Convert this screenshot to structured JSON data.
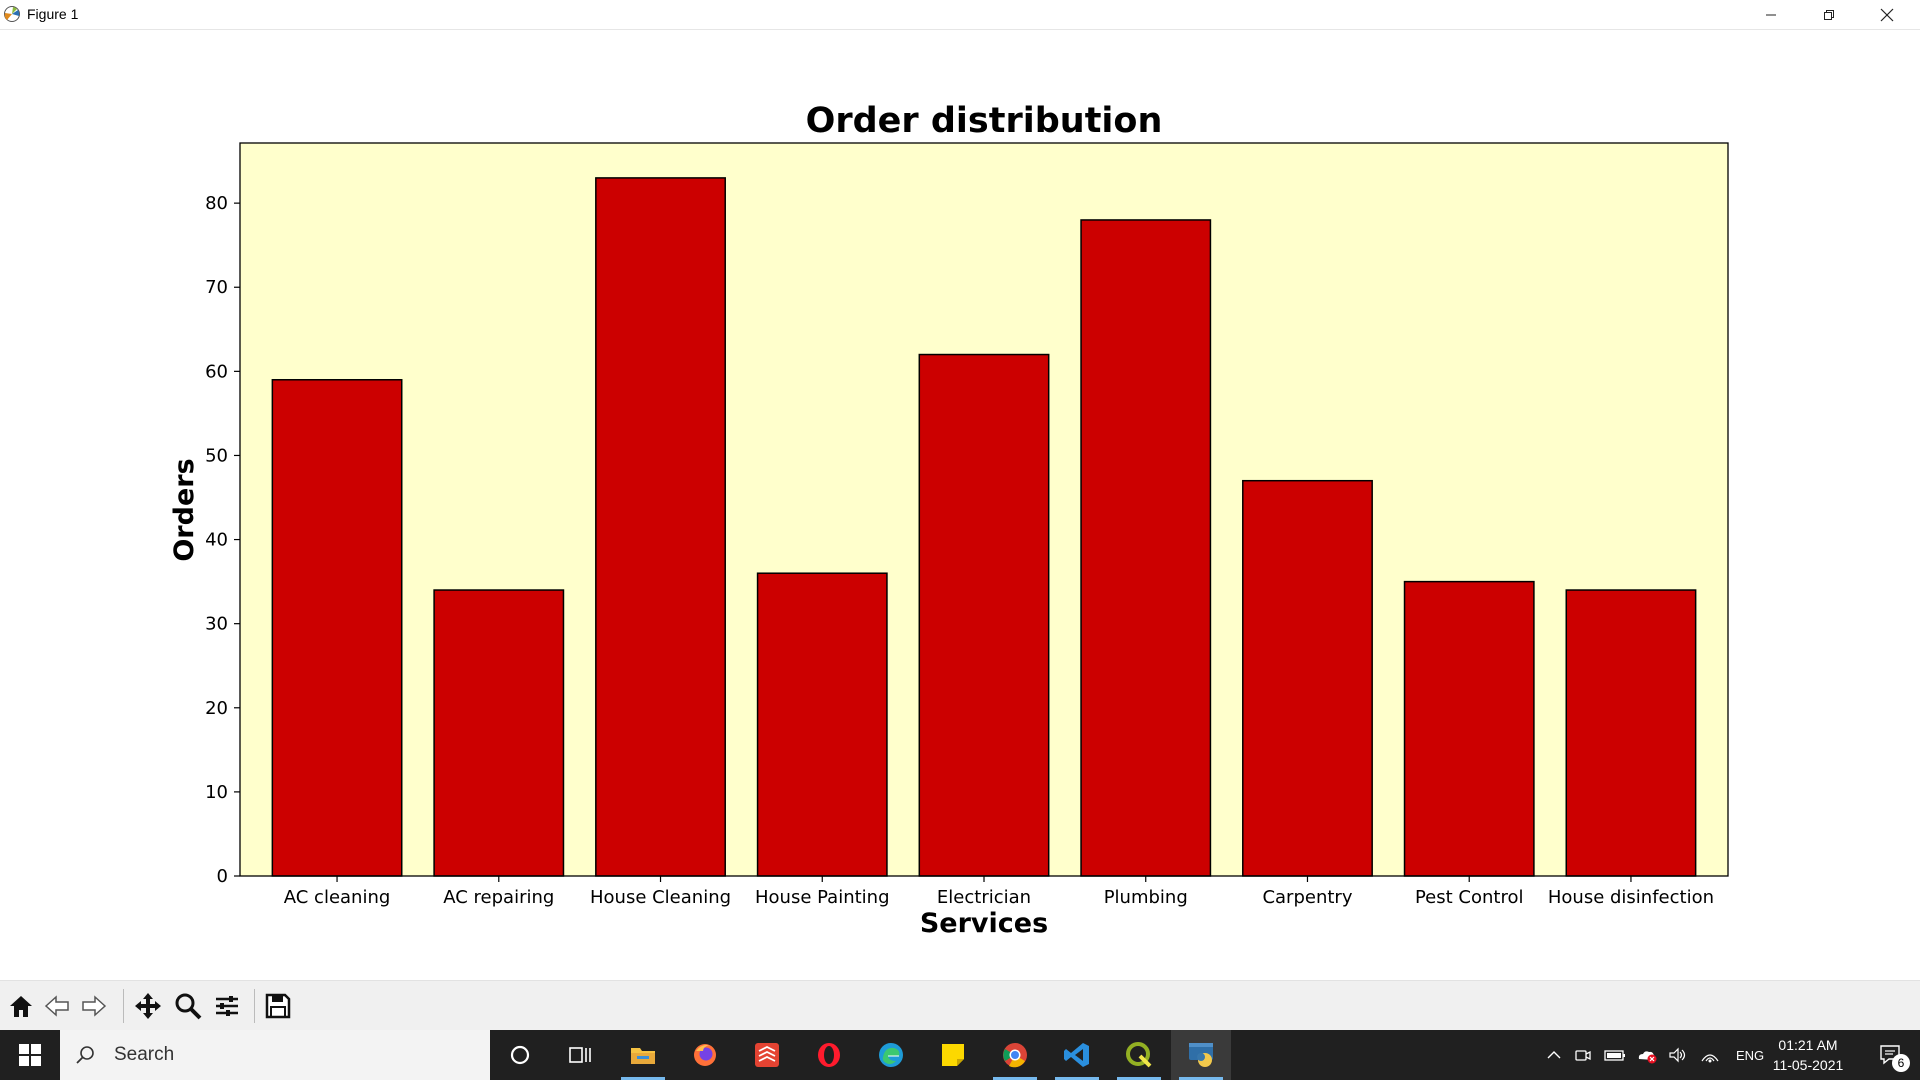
{
  "window": {
    "title": "Figure 1"
  },
  "toolbar": {
    "buttons": [
      "home-icon",
      "back-icon",
      "forward-icon",
      "pan-icon",
      "zoom-icon",
      "configure-subplots-icon",
      "save-icon"
    ]
  },
  "taskbar": {
    "search_placeholder": "Search",
    "tray_lang": "ENG",
    "time": "01:21 AM",
    "date": "11-05-2021",
    "notification_count": "6",
    "apps": [
      "cortana-icon",
      "task-view-icon",
      "file-explorer-icon",
      "firefox-icon",
      "todoist-icon",
      "opera-icon",
      "edge-icon",
      "sticky-notes-icon",
      "chrome-icon",
      "vscode-icon",
      "qgis-icon",
      "python-icon"
    ]
  },
  "chart_data": {
    "type": "bar",
    "title": "Order distribution",
    "xlabel": "Services",
    "ylabel": "Orders",
    "categories": [
      "AC cleaning",
      "AC repairing",
      "House Cleaning",
      "House Painting",
      "Electrician",
      "Plumbing",
      "Carpentry",
      "Pest Control",
      "House disinfection"
    ],
    "values": [
      59,
      34,
      83,
      36,
      62,
      78,
      47,
      35,
      34
    ],
    "ylim": [
      0,
      87.15
    ],
    "yticks": [
      0,
      10,
      20,
      30,
      40,
      50,
      60,
      70,
      80
    ],
    "bar_color": "#cc0000",
    "bar_edge_color": "#000000",
    "plot_background": "#ffffcc",
    "grid": false
  }
}
